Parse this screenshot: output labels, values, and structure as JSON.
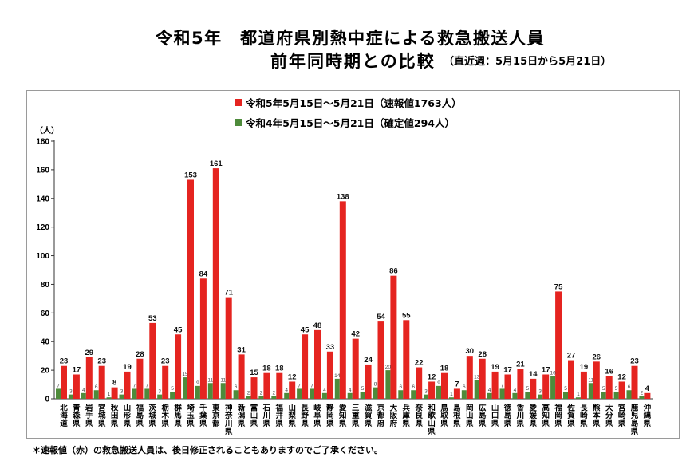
{
  "chart_data": {
    "type": "bar",
    "title": "令和5年　都道府県別熱中症による救急搬送人員",
    "subtitle": "前年同時期との比較",
    "period": "（直近週：5月15日から5月21日）",
    "xlabel": "",
    "ylabel": "（人）",
    "ylim": [
      0,
      180
    ],
    "yticks": [
      0,
      20,
      40,
      60,
      80,
      100,
      120,
      140,
      160,
      180
    ],
    "grid": false,
    "legend": "top",
    "categories": [
      "北海道",
      "青森県",
      "岩手県",
      "宮城県",
      "秋田県",
      "山形県",
      "福島県",
      "茨城県",
      "栃木県",
      "群馬県",
      "埼玉県",
      "千葉県",
      "東京都",
      "神奈川県",
      "新潟県",
      "富山県",
      "石川県",
      "福井県",
      "山梨県",
      "長野県",
      "岐阜県",
      "静岡県",
      "愛知県",
      "三重県",
      "滋賀県",
      "京都府",
      "大阪府",
      "兵庫県",
      "奈良県",
      "和歌山県",
      "鳥取県",
      "島根県",
      "岡山県",
      "広島県",
      "山口県",
      "徳島県",
      "香川県",
      "愛媛県",
      "高知県",
      "福岡県",
      "佐賀県",
      "長崎県",
      "熊本県",
      "大分県",
      "宮崎県",
      "鹿児島県",
      "沖縄県"
    ],
    "series": [
      {
        "name": "令和5年5月15日～5月21日（速報値1763人）",
        "color": "#e52420",
        "values": [
          23,
          17,
          29,
          23,
          8,
          19,
          28,
          53,
          23,
          45,
          153,
          84,
          161,
          71,
          31,
          15,
          18,
          18,
          12,
          45,
          48,
          33,
          138,
          42,
          24,
          54,
          86,
          55,
          22,
          12,
          18,
          7,
          30,
          28,
          19,
          17,
          21,
          14,
          17,
          75,
          27,
          19,
          26,
          16,
          12,
          23,
          4
        ]
      },
      {
        "name": "令和4年5月15日～5月21日（確定値294人）",
        "color": "#4e8b3b",
        "values": [
          7,
          3,
          4,
          6,
          1,
          3,
          7,
          7,
          3,
          5,
          15,
          9,
          11,
          11,
          6,
          2,
          2,
          2,
          4,
          7,
          7,
          4,
          14,
          4,
          5,
          8,
          20,
          6,
          6,
          3,
          9,
          1,
          6,
          13,
          4,
          7,
          4,
          5,
          3,
          16,
          5,
          1,
          11,
          5,
          5,
          6,
          2
        ]
      }
    ],
    "footnote": "＊速報値（赤）の救急搬送人員は、後日修正されることもありますのでご了承ください。"
  }
}
